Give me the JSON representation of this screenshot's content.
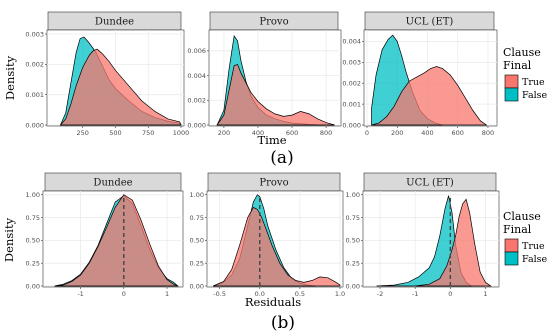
{
  "colors": {
    "true_fill": "#F8766D",
    "false_fill": "#00BFC4",
    "strip_bg": "#D9D9D9",
    "grid": "#EBEBEB",
    "panel_border": "#333333"
  },
  "figure_a": {
    "label": "(a)",
    "xlabel": "Time",
    "ylabel": "Density",
    "legend": {
      "title_line1": "Clause",
      "title_line2": "Final",
      "true_label": "True",
      "false_label": "False"
    }
  },
  "figure_b": {
    "label": "(b)",
    "xlabel": "Residuals",
    "ylabel": "Density",
    "legend": {
      "title_line1": "Clause",
      "title_line2": "Final",
      "true_label": "True",
      "false_label": "False"
    }
  },
  "chart_data": [
    {
      "type": "area",
      "facet": "Dundee",
      "figure": "a",
      "xlim": [
        0,
        1000
      ],
      "ylim": [
        0,
        0.0031
      ],
      "xticks": [
        250,
        500,
        750,
        1000
      ],
      "xtick_labels": [
        "250",
        "500",
        "750",
        "1000"
      ],
      "yticks": [
        0.0,
        0.001,
        0.002,
        0.003
      ],
      "ytick_labels": [
        "0.000",
        "0.001",
        "0.002",
        "0.003"
      ],
      "series": [
        {
          "name": "False",
          "x": [
            80,
            120,
            160,
            200,
            230,
            260,
            300,
            350,
            400,
            450,
            500,
            600,
            700,
            800,
            900,
            990,
            1000
          ],
          "y": [
            0,
            0.0004,
            0.0014,
            0.0024,
            0.00285,
            0.0029,
            0.0027,
            0.0024,
            0.00195,
            0.0015,
            0.0012,
            0.0008,
            0.00045,
            0.00025,
            0.00012,
            6e-05,
            0
          ]
        },
        {
          "name": "True",
          "x": [
            80,
            120,
            160,
            200,
            250,
            300,
            330,
            360,
            400,
            450,
            500,
            600,
            700,
            800,
            900,
            990,
            1000
          ],
          "y": [
            0,
            0.0002,
            0.0007,
            0.0013,
            0.0019,
            0.0023,
            0.00245,
            0.0025,
            0.00235,
            0.0021,
            0.0018,
            0.0013,
            0.0008,
            0.00045,
            0.0002,
            0.0001,
            0
          ]
        }
      ]
    },
    {
      "type": "area",
      "facet": "Provo",
      "figure": "a",
      "xlim": [
        130,
        870
      ],
      "ylim": [
        0,
        0.0076
      ],
      "xticks": [
        200,
        400,
        600,
        800
      ],
      "xtick_labels": [
        "200",
        "400",
        "600",
        "800"
      ],
      "yticks": [
        0.0,
        0.002,
        0.004,
        0.006
      ],
      "ytick_labels": [
        "0.000",
        "0.002",
        "0.004",
        "0.006"
      ],
      "series": [
        {
          "name": "False",
          "x": [
            160,
            200,
            230,
            260,
            280,
            300,
            330,
            360,
            400,
            450,
            500,
            550,
            600,
            650,
            700,
            750,
            800,
            850
          ],
          "y": [
            0,
            0.0012,
            0.0045,
            0.0072,
            0.0068,
            0.0052,
            0.0035,
            0.0023,
            0.0014,
            0.0008,
            0.0005,
            0.0003,
            0.00015,
            0.0001,
            5e-05,
            2e-05,
            1e-05,
            0
          ]
        },
        {
          "name": "True",
          "x": [
            160,
            200,
            230,
            260,
            280,
            300,
            330,
            360,
            400,
            450,
            500,
            550,
            600,
            650,
            700,
            750,
            800,
            850
          ],
          "y": [
            0,
            0.0008,
            0.0028,
            0.0048,
            0.0049,
            0.0042,
            0.0034,
            0.0026,
            0.0019,
            0.0013,
            0.0009,
            0.0007,
            0.0008,
            0.0011,
            0.0009,
            0.0005,
            0.0002,
            0
          ]
        }
      ]
    },
    {
      "type": "area",
      "facet": "UCL (ET)",
      "figure": "a",
      "xlim": [
        0,
        840
      ],
      "ylim": [
        0,
        0.0045
      ],
      "xticks": [
        0,
        200,
        400,
        600,
        800
      ],
      "xtick_labels": [
        "0",
        "200",
        "400",
        "600",
        "800"
      ],
      "yticks": [
        0.0,
        0.001,
        0.002,
        0.003,
        0.004
      ],
      "ytick_labels": [
        "0.000",
        "0.001",
        "0.002",
        "0.003",
        "0.004"
      ],
      "series": [
        {
          "name": "False",
          "x": [
            30,
            60,
            100,
            140,
            170,
            200,
            230,
            260,
            300,
            350,
            400,
            450,
            500
          ],
          "y": [
            0.0008,
            0.0024,
            0.0036,
            0.0041,
            0.0043,
            0.004,
            0.0033,
            0.0025,
            0.0016,
            0.0007,
            0.0003,
            0.0001,
            0
          ]
        },
        {
          "name": "True",
          "x": [
            30,
            80,
            130,
            180,
            230,
            280,
            330,
            380,
            420,
            460,
            500,
            550,
            600,
            650,
            700,
            750,
            790
          ],
          "y": [
            0,
            0.0001,
            0.0004,
            0.0009,
            0.0016,
            0.0021,
            0.0023,
            0.0025,
            0.0027,
            0.0028,
            0.0027,
            0.0024,
            0.0019,
            0.0013,
            0.0007,
            0.0002,
            0
          ]
        }
      ]
    },
    {
      "type": "area",
      "facet": "Dundee",
      "figure": "b",
      "xlim": [
        -1.8,
        1.3
      ],
      "ylim": [
        0,
        1.03
      ],
      "xticks": [
        -1,
        0,
        1
      ],
      "xtick_labels": [
        "-1",
        "0",
        "1"
      ],
      "yticks": [
        0.0,
        0.25,
        0.5,
        0.75,
        1.0
      ],
      "ytick_labels": [
        "0.00",
        "0.25",
        "0.50",
        "0.75",
        "1.00"
      ],
      "vline": 0,
      "series": [
        {
          "name": "False",
          "x": [
            -1.6,
            -1.4,
            -1.2,
            -1.0,
            -0.8,
            -0.6,
            -0.4,
            -0.2,
            0,
            0.2,
            0.4,
            0.6,
            0.8,
            1.0,
            1.15,
            1.25
          ],
          "y": [
            0,
            0.02,
            0.06,
            0.13,
            0.26,
            0.44,
            0.68,
            0.92,
            0.99,
            0.9,
            0.66,
            0.4,
            0.2,
            0.08,
            0.04,
            0
          ]
        },
        {
          "name": "True",
          "x": [
            -1.6,
            -1.4,
            -1.2,
            -1.0,
            -0.8,
            -0.6,
            -0.4,
            -0.2,
            0,
            0.2,
            0.4,
            0.6,
            0.8,
            1.0,
            1.15,
            1.25
          ],
          "y": [
            0,
            0.01,
            0.05,
            0.12,
            0.25,
            0.43,
            0.64,
            0.86,
            1.0,
            0.94,
            0.72,
            0.46,
            0.22,
            0.07,
            0.02,
            0
          ]
        }
      ]
    },
    {
      "type": "area",
      "facet": "Provo",
      "figure": "b",
      "xlim": [
        -0.62,
        1.0
      ],
      "ylim": [
        0,
        1.03
      ],
      "xticks": [
        -0.5,
        0.0,
        0.5,
        1.0
      ],
      "xtick_labels": [
        "-0.5",
        "0.0",
        "0.5",
        "1.0"
      ],
      "yticks": [
        0.0,
        0.25,
        0.5,
        0.75,
        1.0
      ],
      "ytick_labels": [
        "0.00",
        "0.25",
        "0.50",
        "0.75",
        "1.00"
      ],
      "vline": 0,
      "series": [
        {
          "name": "False",
          "x": [
            -0.58,
            -0.45,
            -0.35,
            -0.25,
            -0.15,
            -0.08,
            -0.03,
            0,
            0.05,
            0.1,
            0.2,
            0.3,
            0.4,
            0.5,
            0.6,
            0.7
          ],
          "y": [
            0,
            0.04,
            0.12,
            0.3,
            0.66,
            0.92,
            1.0,
            0.98,
            0.85,
            0.66,
            0.4,
            0.2,
            0.08,
            0.03,
            0.01,
            0
          ]
        },
        {
          "name": "True",
          "x": [
            -0.58,
            -0.45,
            -0.35,
            -0.25,
            -0.15,
            -0.08,
            -0.03,
            0.02,
            0.08,
            0.15,
            0.25,
            0.35,
            0.45,
            0.55,
            0.65,
            0.75,
            0.85,
            0.95,
            1.0
          ],
          "y": [
            0,
            0.05,
            0.18,
            0.45,
            0.75,
            0.86,
            0.84,
            0.76,
            0.62,
            0.45,
            0.25,
            0.12,
            0.06,
            0.04,
            0.06,
            0.1,
            0.09,
            0.04,
            0.01
          ]
        }
      ]
    },
    {
      "type": "area",
      "facet": "UCL (ET)",
      "figure": "b",
      "xlim": [
        -2.4,
        1.3
      ],
      "ylim": [
        0,
        1.03
      ],
      "xticks": [
        -2,
        -1,
        0,
        1
      ],
      "xtick_labels": [
        "-2",
        "-1",
        "0",
        "1"
      ],
      "yticks": [
        0.0,
        0.25,
        0.5,
        0.75,
        1.0
      ],
      "ytick_labels": [
        "0.00",
        "0.25",
        "0.50",
        "0.75",
        "1.00"
      ],
      "vline": 0,
      "series": [
        {
          "name": "False",
          "x": [
            -2.1,
            -1.6,
            -1.2,
            -0.9,
            -0.6,
            -0.45,
            -0.3,
            -0.15,
            -0.05,
            0.05,
            0.15,
            0.3,
            0.45,
            0.6
          ],
          "y": [
            0,
            0.01,
            0.04,
            0.1,
            0.2,
            0.32,
            0.55,
            0.85,
            0.99,
            0.8,
            0.45,
            0.15,
            0.04,
            0
          ],
          "note": ""
        },
        {
          "name": "True",
          "x": [
            -1.0,
            -0.6,
            -0.3,
            -0.1,
            0.05,
            0.15,
            0.25,
            0.35,
            0.45,
            0.55,
            0.7,
            0.85,
            1.0,
            1.15
          ],
          "y": [
            0,
            0.02,
            0.08,
            0.22,
            0.4,
            0.55,
            0.76,
            0.9,
            0.95,
            0.8,
            0.45,
            0.15,
            0.04,
            0
          ]
        }
      ]
    }
  ]
}
